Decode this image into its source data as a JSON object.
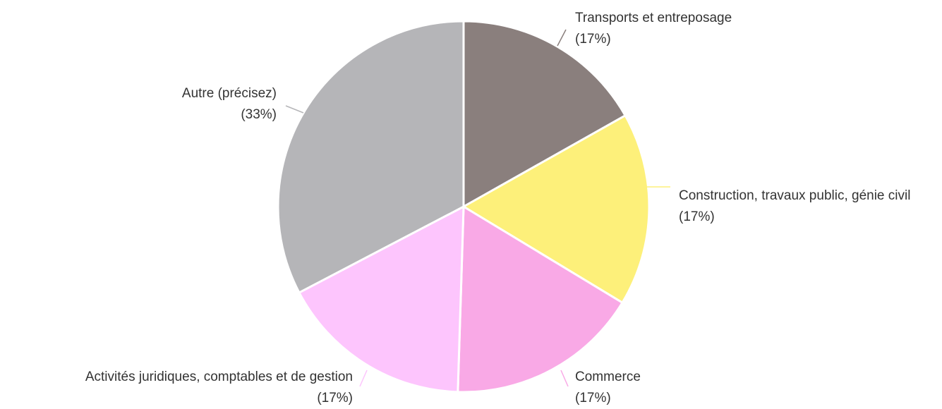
{
  "chart_data": {
    "type": "pie",
    "categories": [
      "Transports et entreposage",
      "Construction, travaux public, génie civil",
      "Commerce",
      "Activités juridiques, comptables et de gestion",
      "Autre (précisez)"
    ],
    "values": [
      17,
      17,
      17,
      17,
      33
    ],
    "value_labels": [
      "(17%)",
      "(17%)",
      "(17%)",
      "(17%)",
      "(33%)"
    ],
    "colors": [
      "#8a7f7d",
      "#fdf07a",
      "#f9a9e6",
      "#fdc5fd",
      "#b5b5b8"
    ]
  }
}
